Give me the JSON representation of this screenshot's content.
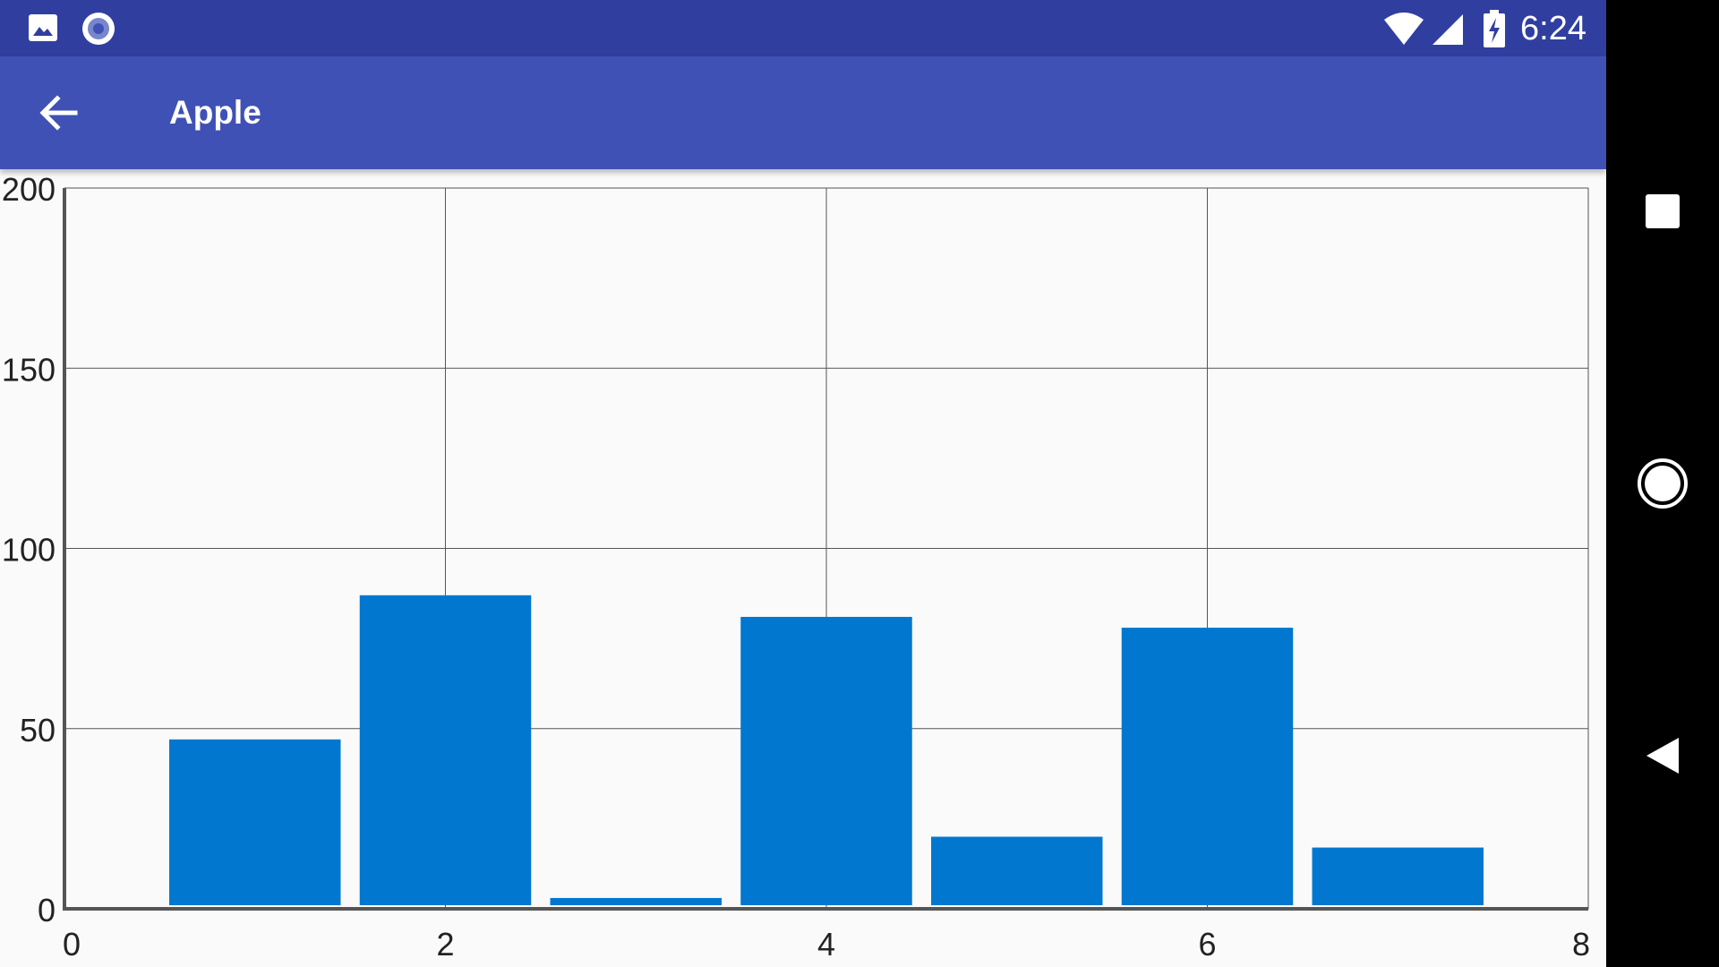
{
  "status_bar": {
    "time": "6:24",
    "left_icons": [
      "image-notification-icon",
      "record-notification-icon"
    ],
    "right_icons": [
      "wifi-icon",
      "cellular-signal-icon",
      "battery-charging-icon"
    ]
  },
  "app_bar": {
    "title": "Apple",
    "back_icon": "arrow-back-icon"
  },
  "nav_bar": {
    "buttons": [
      "recents-button",
      "home-button",
      "back-nav-button"
    ]
  },
  "colors": {
    "status_bar": "#303f9f",
    "app_bar": "#3f51b5",
    "bar": "#0277cf",
    "plot_background": "#fafafa",
    "grid": "#555555"
  },
  "chart_data": {
    "type": "bar",
    "x": [
      1,
      2,
      3,
      4,
      5,
      6,
      7
    ],
    "values": [
      47,
      87,
      3,
      81,
      20,
      78,
      17
    ],
    "bar_width": 0.9,
    "xlim": [
      0,
      8
    ],
    "ylim": [
      0,
      200
    ],
    "xticks": [
      "0",
      "2",
      "4",
      "6",
      "8"
    ],
    "yticks": [
      "0",
      "50",
      "100",
      "150",
      "200"
    ],
    "grid": true,
    "title": "",
    "xlabel": "",
    "ylabel": ""
  }
}
